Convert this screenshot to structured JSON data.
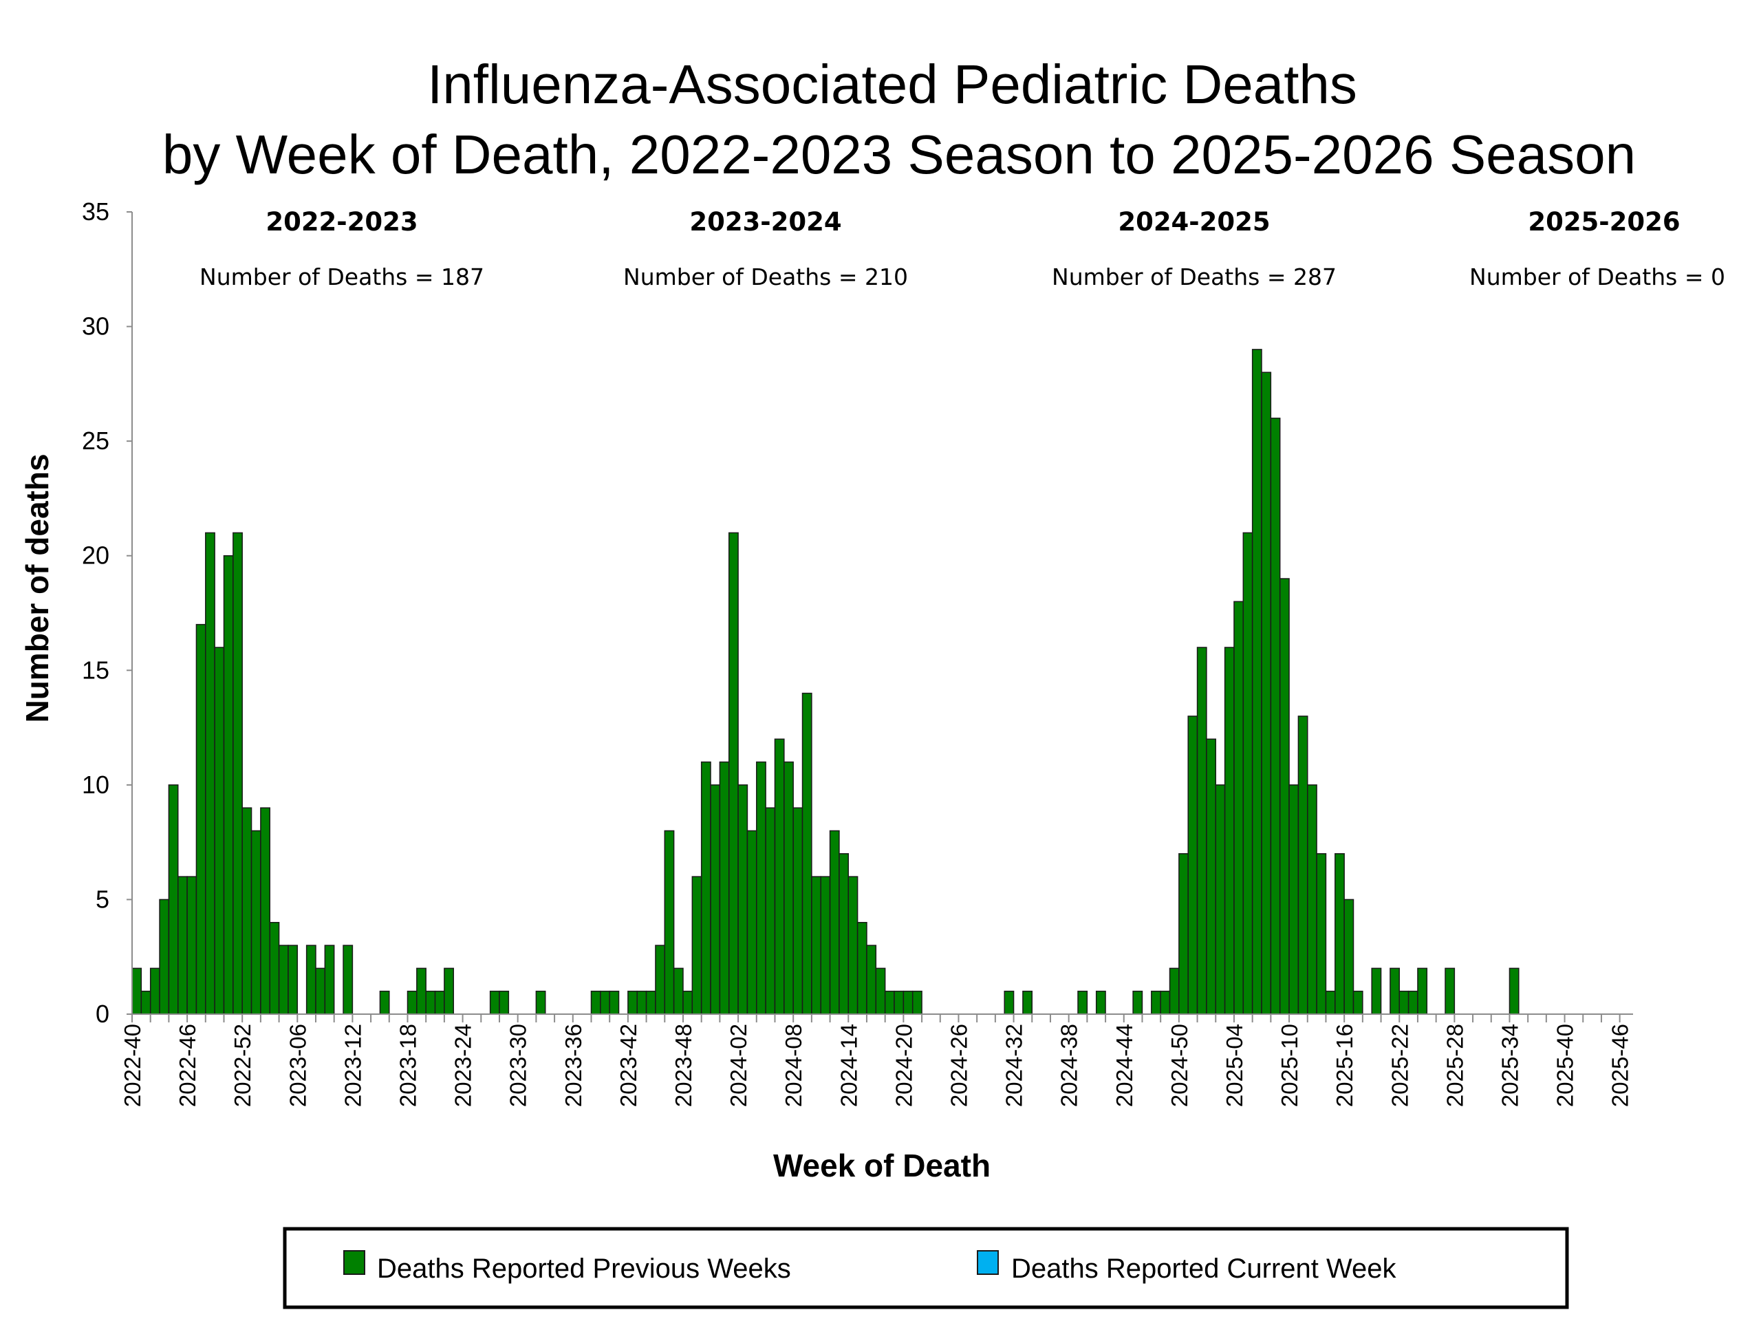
{
  "chart_data": {
    "type": "bar",
    "stacked": true,
    "title": [
      "Influenza-Associated Pediatric Deaths",
      "by Week of Death, 2022-2023 Season to 2025-2026 Season"
    ],
    "xlabel": "Week of Death",
    "ylabel": "Number of deaths",
    "ylim": [
      0,
      35
    ],
    "yticks": [
      0,
      5,
      10,
      15,
      20,
      25,
      30,
      35
    ],
    "x_label_every": 6,
    "grid": false,
    "legend_position": "bottom",
    "colors": {
      "previous": "#008000",
      "current": "#00B0F0",
      "bar_edge": "#1a1a1a"
    },
    "seasons": [
      {
        "label": "2022-2023",
        "count_text": "Number of Deaths = 187"
      },
      {
        "label": "2023-2024",
        "count_text": "Number of Deaths = 210"
      },
      {
        "label": "2024-2025",
        "count_text": "Number of Deaths = 287"
      },
      {
        "label": "2025-2026",
        "count_text": "Number of Deaths = 0"
      }
    ],
    "categories": [
      "2022-40",
      "2022-41",
      "2022-42",
      "2022-43",
      "2022-44",
      "2022-45",
      "2022-46",
      "2022-47",
      "2022-48",
      "2022-49",
      "2022-50",
      "2022-51",
      "2022-52",
      "2023-01",
      "2023-02",
      "2023-03",
      "2023-04",
      "2023-05",
      "2023-06",
      "2023-07",
      "2023-08",
      "2023-09",
      "2023-10",
      "2023-11",
      "2023-12",
      "2023-13",
      "2023-14",
      "2023-15",
      "2023-16",
      "2023-17",
      "2023-18",
      "2023-19",
      "2023-20",
      "2023-21",
      "2023-22",
      "2023-23",
      "2023-24",
      "2023-25",
      "2023-26",
      "2023-27",
      "2023-28",
      "2023-29",
      "2023-30",
      "2023-31",
      "2023-32",
      "2023-33",
      "2023-34",
      "2023-35",
      "2023-36",
      "2023-37",
      "2023-38",
      "2023-39",
      "2023-40",
      "2023-41",
      "2023-42",
      "2023-43",
      "2023-44",
      "2023-45",
      "2023-46",
      "2023-47",
      "2023-48",
      "2023-49",
      "2023-50",
      "2023-51",
      "2023-52",
      "2024-01",
      "2024-02",
      "2024-03",
      "2024-04",
      "2024-05",
      "2024-06",
      "2024-07",
      "2024-08",
      "2024-09",
      "2024-10",
      "2024-11",
      "2024-12",
      "2024-13",
      "2024-14",
      "2024-15",
      "2024-16",
      "2024-17",
      "2024-18",
      "2024-19",
      "2024-20",
      "2024-21",
      "2024-22",
      "2024-23",
      "2024-24",
      "2024-25",
      "2024-26",
      "2024-27",
      "2024-28",
      "2024-29",
      "2024-30",
      "2024-31",
      "2024-32",
      "2024-33",
      "2024-34",
      "2024-35",
      "2024-36",
      "2024-37",
      "2024-38",
      "2024-39",
      "2024-40",
      "2024-41",
      "2024-42",
      "2024-43",
      "2024-44",
      "2024-45",
      "2024-46",
      "2024-47",
      "2024-48",
      "2024-49",
      "2024-50",
      "2024-51",
      "2024-52",
      "2025-01",
      "2025-02",
      "2025-03",
      "2025-04",
      "2025-05",
      "2025-06",
      "2025-07",
      "2025-08",
      "2025-09",
      "2025-10",
      "2025-11",
      "2025-12",
      "2025-13",
      "2025-14",
      "2025-15",
      "2025-16",
      "2025-17",
      "2025-18",
      "2025-19",
      "2025-20",
      "2025-21",
      "2025-22",
      "2025-23",
      "2025-24",
      "2025-25",
      "2025-26",
      "2025-27",
      "2025-28",
      "2025-29",
      "2025-30",
      "2025-31",
      "2025-32",
      "2025-33",
      "2025-34",
      "2025-35",
      "2025-36",
      "2025-37",
      "2025-38",
      "2025-39",
      "2025-40",
      "2025-41",
      "2025-42",
      "2025-43",
      "2025-44",
      "2025-45",
      "2025-46"
    ],
    "series": [
      {
        "name": "Deaths Reported Previous Weeks",
        "values": [
          2,
          1,
          2,
          5,
          10,
          6,
          6,
          17,
          21,
          16,
          20,
          21,
          9,
          8,
          9,
          4,
          3,
          3,
          0,
          3,
          2,
          3,
          0,
          3,
          0,
          0,
          0,
          1,
          0,
          0,
          1,
          2,
          1,
          1,
          2,
          0,
          0,
          0,
          0,
          1,
          1,
          0,
          0,
          0,
          1,
          0,
          0,
          0,
          0,
          0,
          1,
          1,
          1,
          0,
          1,
          1,
          1,
          3,
          8,
          2,
          1,
          6,
          11,
          10,
          11,
          21,
          10,
          8,
          11,
          9,
          12,
          11,
          9,
          14,
          6,
          6,
          8,
          7,
          6,
          4,
          3,
          2,
          1,
          1,
          1,
          1,
          0,
          0,
          0,
          0,
          0,
          0,
          0,
          0,
          0,
          1,
          0,
          1,
          0,
          0,
          0,
          0,
          0,
          1,
          0,
          1,
          0,
          0,
          0,
          1,
          0,
          1,
          1,
          2,
          7,
          13,
          16,
          12,
          10,
          16,
          18,
          21,
          29,
          28,
          26,
          19,
          10,
          13,
          10,
          7,
          1,
          7,
          5,
          1,
          0,
          2,
          0,
          2,
          1,
          1,
          2,
          0,
          0,
          2,
          0,
          0,
          0,
          0,
          0,
          0,
          2,
          0,
          0,
          0,
          0,
          0,
          0,
          0,
          0,
          0,
          0,
          0,
          0
        ]
      },
      {
        "name": "Deaths Reported Current Week",
        "values": [
          0,
          0,
          0,
          0,
          0,
          0,
          0,
          0,
          0,
          0,
          0,
          0,
          0,
          0,
          0,
          0,
          0,
          0,
          0,
          0,
          0,
          0,
          0,
          0,
          0,
          0,
          0,
          0,
          0,
          0,
          0,
          0,
          0,
          0,
          0,
          0,
          0,
          0,
          0,
          0,
          0,
          0,
          0,
          0,
          0,
          0,
          0,
          0,
          0,
          0,
          0,
          0,
          0,
          0,
          0,
          0,
          0,
          0,
          0,
          0,
          0,
          0,
          0,
          0,
          0,
          0,
          0,
          0,
          0,
          0,
          0,
          0,
          0,
          0,
          0,
          0,
          0,
          0,
          0,
          0,
          0,
          0,
          0,
          0,
          0,
          0,
          0,
          0,
          0,
          0,
          0,
          0,
          0,
          0,
          0,
          0,
          0,
          0,
          0,
          0,
          0,
          0,
          0,
          0,
          0,
          0,
          0,
          0,
          0,
          0,
          0,
          0,
          0,
          0,
          0,
          0,
          0,
          0,
          0,
          0,
          0,
          0,
          0,
          0,
          0,
          0,
          0,
          0,
          0,
          0,
          0,
          0,
          0,
          0,
          0,
          0,
          0,
          0,
          0,
          0,
          0,
          0,
          0,
          0,
          0,
          0,
          0,
          0,
          0,
          0,
          0,
          0,
          0,
          0,
          0,
          0,
          0,
          0,
          0,
          0,
          0,
          0,
          0
        ]
      }
    ]
  }
}
